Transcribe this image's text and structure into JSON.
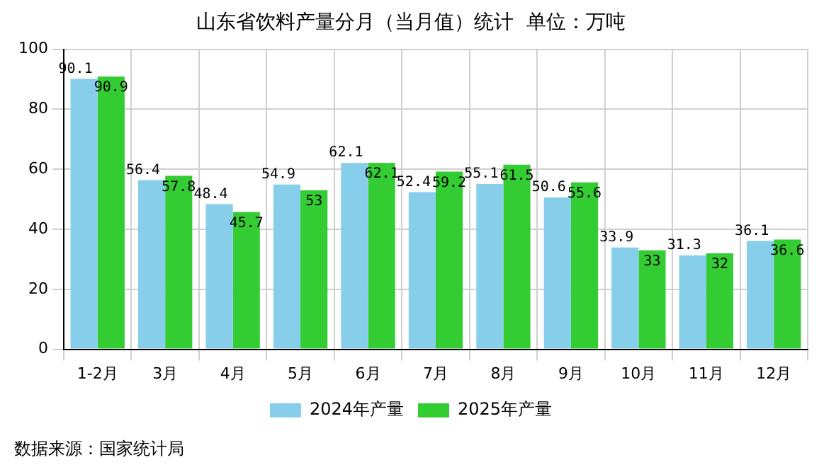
{
  "chart_data": {
    "type": "bar",
    "title": "山东省饮料产量分月（当月值）统计  单位：万吨",
    "categories": [
      "1-2月",
      "3月",
      "4月",
      "5月",
      "6月",
      "7月",
      "8月",
      "9月",
      "10月",
      "11月",
      "12月"
    ],
    "series": [
      {
        "name": "2024年产量",
        "color": "#87ceeb",
        "values": [
          90.1,
          56.4,
          48.4,
          54.9,
          62.1,
          52.4,
          55.1,
          50.6,
          33.9,
          31.3,
          36.1
        ]
      },
      {
        "name": "2025年产量",
        "color": "#33cc33",
        "values": [
          90.9,
          57.8,
          45.7,
          53,
          62.1,
          59.2,
          61.5,
          55.6,
          33,
          32,
          36.6
        ]
      }
    ],
    "ylim": [
      0,
      100
    ],
    "yticks": [
      0,
      20,
      40,
      60,
      80,
      100
    ],
    "grid": true,
    "legend": "bottom",
    "data_labels": true,
    "annotations": [
      "数据来源：国家统计局"
    ]
  }
}
